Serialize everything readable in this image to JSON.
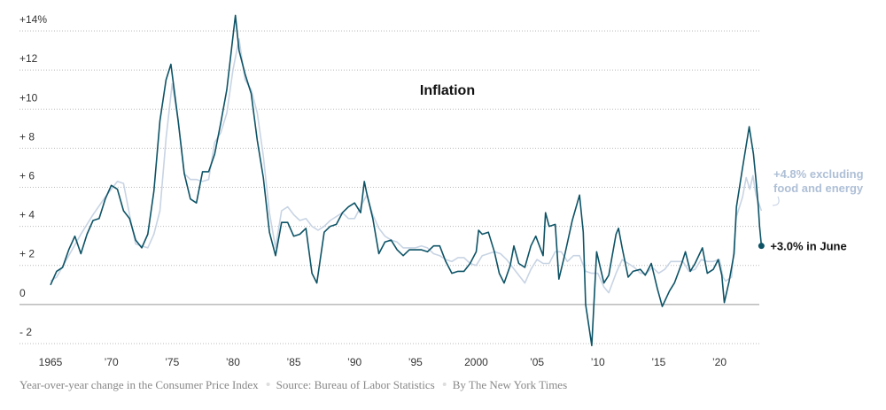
{
  "chart_data": {
    "type": "line",
    "title": "Inflation",
    "xlim": [
      1962.35,
      2025.5
    ],
    "ylim": [
      -2.5,
      15
    ],
    "grid": true,
    "yticks": [
      {
        "value": 14,
        "label": "+14%"
      },
      {
        "value": 12,
        "label": "+12"
      },
      {
        "value": 10,
        "label": "+10"
      },
      {
        "value": 8,
        "label": "+ 8"
      },
      {
        "value": 6,
        "label": "+ 6"
      },
      {
        "value": 4,
        "label": "+ 4"
      },
      {
        "value": 2,
        "label": "+ 2"
      },
      0,
      {
        "value": -2,
        "label": "- 2"
      }
    ],
    "xticks": [
      1965,
      {
        "value": 1970,
        "label": "’70"
      },
      {
        "value": 1975,
        "label": "’75"
      },
      {
        "value": 1980,
        "label": "’80"
      },
      {
        "value": 1985,
        "label": "’85"
      },
      {
        "value": 1990,
        "label": "’90"
      },
      {
        "value": 1995,
        "label": "’95"
      },
      2000,
      {
        "value": 2005,
        "label": "’05"
      },
      {
        "value": 2010,
        "label": "’10"
      },
      {
        "value": 2015,
        "label": "’15"
      },
      {
        "value": 2020,
        "label": "’20"
      }
    ],
    "series": [
      {
        "name": [
          "+4.8% excluding",
          "food and energy"
        ],
        "color": "#c8d4e4",
        "x": [
          1965,
          1965.5,
          1966.5,
          1967.5,
          1968.5,
          1969.5,
          1970.5,
          1971,
          1971.5,
          1972,
          1972.5,
          1973,
          1973.5,
          1974,
          1974.5,
          1975,
          1975.5,
          1976,
          1976.5,
          1977,
          1977.5,
          1978,
          1978.5,
          1979,
          1979.5,
          1980,
          1980.5,
          1981,
          1981.5,
          1982,
          1982.5,
          1983,
          1983.5,
          1984,
          1984.5,
          1985,
          1985.5,
          1986,
          1986.5,
          1987,
          1987.5,
          1988,
          1988.5,
          1989,
          1989.5,
          1990,
          1990.5,
          1991,
          1991.5,
          1992,
          1992.5,
          1993,
          1993.5,
          1994,
          1994.5,
          1995,
          1995.5,
          1996,
          1996.5,
          1997,
          1997.5,
          1998,
          1998.5,
          1999,
          1999.5,
          2000,
          2000.5,
          2001,
          2001.5,
          2002,
          2002.5,
          2003,
          2003.5,
          2004,
          2004.5,
          2005,
          2005.5,
          2006,
          2006.5,
          2007,
          2007.5,
          2008,
          2008.5,
          2009,
          2009.5,
          2010,
          2010.5,
          2010.9,
          2011.5,
          2012,
          2012.5,
          2013,
          2013.5,
          2014,
          2014.5,
          2015,
          2015.5,
          2016,
          2016.5,
          2017,
          2017.5,
          2018,
          2018.5,
          2019,
          2019.5,
          2020,
          2020.3,
          2020.5,
          2021,
          2021.4,
          2021.9,
          2022.2,
          2022.5,
          2022.75,
          2023,
          2023.45
        ],
        "values": [
          1.2,
          1.4,
          2.5,
          3.6,
          4.6,
          5.5,
          6.3,
          6.2,
          4.6,
          3.1,
          3.0,
          2.9,
          3.6,
          4.8,
          8.5,
          11.3,
          9.4,
          6.7,
          6.4,
          6.4,
          6.3,
          6.4,
          8.3,
          8.8,
          9.8,
          12.0,
          13.6,
          11.5,
          11.0,
          9.8,
          7.6,
          4.7,
          2.9,
          4.8,
          5.0,
          4.6,
          4.3,
          4.4,
          4.0,
          3.8,
          4.0,
          4.3,
          4.5,
          4.7,
          4.4,
          4.4,
          5.0,
          5.6,
          4.6,
          3.9,
          3.5,
          3.3,
          3.2,
          2.9,
          2.9,
          2.9,
          3.0,
          2.9,
          2.6,
          2.5,
          2.3,
          2.2,
          2.4,
          2.4,
          2.1,
          2.0,
          2.5,
          2.6,
          2.7,
          2.6,
          2.3,
          1.9,
          1.5,
          1.1,
          1.8,
          2.3,
          2.1,
          2.1,
          2.7,
          2.7,
          2.2,
          2.5,
          2.5,
          1.7,
          1.6,
          1.6,
          0.9,
          0.6,
          1.6,
          2.3,
          2.1,
          1.9,
          1.6,
          1.6,
          1.9,
          1.6,
          1.8,
          2.2,
          2.2,
          2.2,
          1.7,
          1.8,
          2.3,
          2.2,
          2.2,
          2.3,
          1.4,
          1.2,
          1.4,
          4.5,
          5.5,
          6.5,
          5.9,
          6.6,
          5.6,
          4.8
        ]
      },
      {
        "name": "+3.0% in June",
        "color": "#0d5366",
        "x": [
          1965,
          1965.5,
          1966,
          1966.5,
          1967,
          1967.5,
          1968,
          1968.5,
          1969,
          1969.5,
          1970,
          1970.5,
          1971,
          1971.5,
          1972,
          1972.5,
          1973,
          1973.5,
          1974,
          1974.5,
          1974.9,
          1975.5,
          1976,
          1976.5,
          1977,
          1977.5,
          1978,
          1978.5,
          1979,
          1979.5,
          1980.2,
          1980.5,
          1981,
          1981.5,
          1982,
          1982.5,
          1983,
          1983.5,
          1984,
          1984.5,
          1985,
          1985.5,
          1986,
          1986.5,
          1986.9,
          1987.5,
          1988,
          1988.5,
          1989,
          1989.5,
          1990,
          1990.5,
          1990.8,
          1991,
          1991.5,
          1992,
          1992.5,
          1993,
          1993.5,
          1994,
          1994.5,
          1995,
          1995.5,
          1996,
          1996.5,
          1997,
          1997.5,
          1998,
          1998.5,
          1999,
          1999.5,
          2000,
          2000.2,
          2000.5,
          2001,
          2001.5,
          2001.9,
          2002.3,
          2002.8,
          2003.1,
          2003.5,
          2004,
          2004.5,
          2004.9,
          2005.5,
          2005.7,
          2006,
          2006.5,
          2006.8,
          2007.3,
          2007.9,
          2008.5,
          2008.8,
          2009,
          2009.5,
          2009.9,
          2010.5,
          2010.9,
          2011.5,
          2011.7,
          2012,
          2012.5,
          2012.9,
          2013.5,
          2013.9,
          2014.4,
          2014.9,
          2015.3,
          2015.9,
          2016.3,
          2016.9,
          2017.2,
          2017.6,
          2018,
          2018.6,
          2019,
          2019.5,
          2019.9,
          2020.2,
          2020.4,
          2020.8,
          2021.2,
          2021.4,
          2021.9,
          2022.45,
          2022.8,
          2023,
          2023.2,
          2023.3,
          2023.45
        ],
        "values": [
          1.0,
          1.7,
          1.9,
          2.8,
          3.5,
          2.6,
          3.6,
          4.3,
          4.4,
          5.4,
          6.1,
          5.9,
          4.8,
          4.4,
          3.3,
          2.9,
          3.6,
          5.8,
          9.4,
          11.5,
          12.3,
          9.4,
          6.7,
          5.4,
          5.2,
          6.8,
          6.8,
          7.7,
          9.3,
          11.0,
          14.8,
          13.0,
          11.8,
          10.8,
          8.4,
          6.5,
          3.7,
          2.5,
          4.2,
          4.2,
          3.5,
          3.6,
          3.9,
          1.6,
          1.1,
          3.7,
          4.0,
          4.1,
          4.7,
          5.0,
          5.2,
          4.7,
          6.3,
          5.7,
          4.4,
          2.6,
          3.2,
          3.3,
          2.8,
          2.5,
          2.8,
          2.8,
          2.8,
          2.7,
          3.0,
          3.0,
          2.2,
          1.6,
          1.7,
          1.7,
          2.1,
          2.7,
          3.8,
          3.6,
          3.7,
          2.7,
          1.6,
          1.1,
          2.0,
          3.0,
          2.1,
          1.9,
          3.0,
          3.5,
          2.5,
          4.7,
          4.0,
          4.1,
          1.3,
          2.6,
          4.3,
          5.6,
          3.7,
          0.0,
          -2.1,
          2.7,
          1.1,
          1.5,
          3.6,
          3.9,
          2.9,
          1.4,
          1.7,
          1.8,
          1.5,
          2.1,
          0.8,
          -0.1,
          0.7,
          1.1,
          2.1,
          2.7,
          1.7,
          2.1,
          2.9,
          1.6,
          1.8,
          2.3,
          1.5,
          0.1,
          1.2,
          2.6,
          5.0,
          7.0,
          9.1,
          7.7,
          6.4,
          5.0,
          4.0,
          3.0
        ]
      }
    ],
    "footer": [
      "Year-over-year change in the Consumer Price Index",
      "Source: Bureau of Labor Statistics",
      "By The New York Times"
    ]
  }
}
